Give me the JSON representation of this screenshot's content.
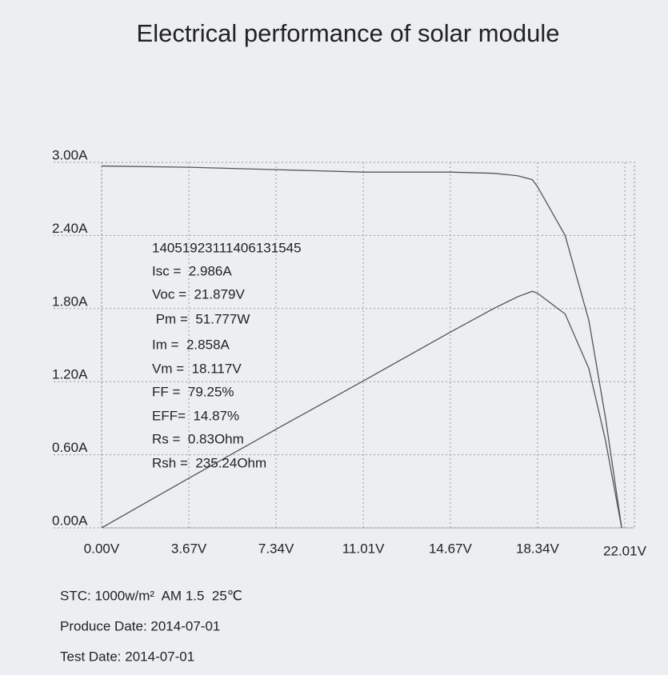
{
  "chart_data": {
    "type": "line",
    "title": "Electrical performance of solar module",
    "x": [
      0,
      3.67,
      7.34,
      11.01,
      14.67,
      16.5,
      17.5,
      18.117,
      18.34,
      19.5,
      20.5,
      21.2,
      21.879
    ],
    "series": [
      {
        "color": "#555555",
        "values": [
          2.97,
          2.96,
          2.94,
          2.92,
          2.92,
          2.91,
          2.89,
          2.858,
          2.8,
          2.4,
          1.7,
          0.9,
          0
        ]
      },
      {
        "color": "#555555",
        "axis": "y2",
        "values": [
          0,
          10.86,
          21.58,
          32.15,
          42.84,
          48.02,
          50.58,
          51.78,
          51.35,
          46.8,
          34.85,
          19.08,
          0
        ]
      }
    ],
    "xlim": [
      0,
      22.01
    ],
    "ylim": [
      0,
      3
    ],
    "y2lim": [
      0,
      80
    ],
    "xticks": [
      {
        "value": 0,
        "label": "0.00V"
      },
      {
        "value": 3.67,
        "label": "3.67V"
      },
      {
        "value": 7.34,
        "label": "7.34V"
      },
      {
        "value": 11.01,
        "label": "11.01V"
      },
      {
        "value": 14.67,
        "label": "14.67V"
      },
      {
        "value": 18.34,
        "label": "18.34V"
      },
      {
        "value": 22.01,
        "label": "22.01V"
      }
    ],
    "yticks": [
      {
        "value": 0,
        "label": "0.00A"
      },
      {
        "value": 0.6,
        "label": "0.60A"
      },
      {
        "value": 1.2,
        "label": "1.20A"
      },
      {
        "value": 1.8,
        "label": "1.80A"
      },
      {
        "value": 2.4,
        "label": "2.40A"
      },
      {
        "value": 3,
        "label": "3.00A"
      }
    ],
    "grid": true,
    "annotations": [
      "14051923111406131545",
      "Isc =  2.986A",
      "Voc =  21.879V",
      " Pm =  51.777W",
      "Im =  2.858A",
      "Vm =  18.117V",
      "FF =  79.25%",
      "EFF=  14.87%",
      "Rs =  0.83Ohm",
      "Rsh =  235.24Ohm"
    ],
    "footer": [
      "STC: 1000w/m²  AM 1.5  25℃",
      "Produce Date: 2014-07-01",
      "Test Date: 2014-07-01"
    ]
  }
}
